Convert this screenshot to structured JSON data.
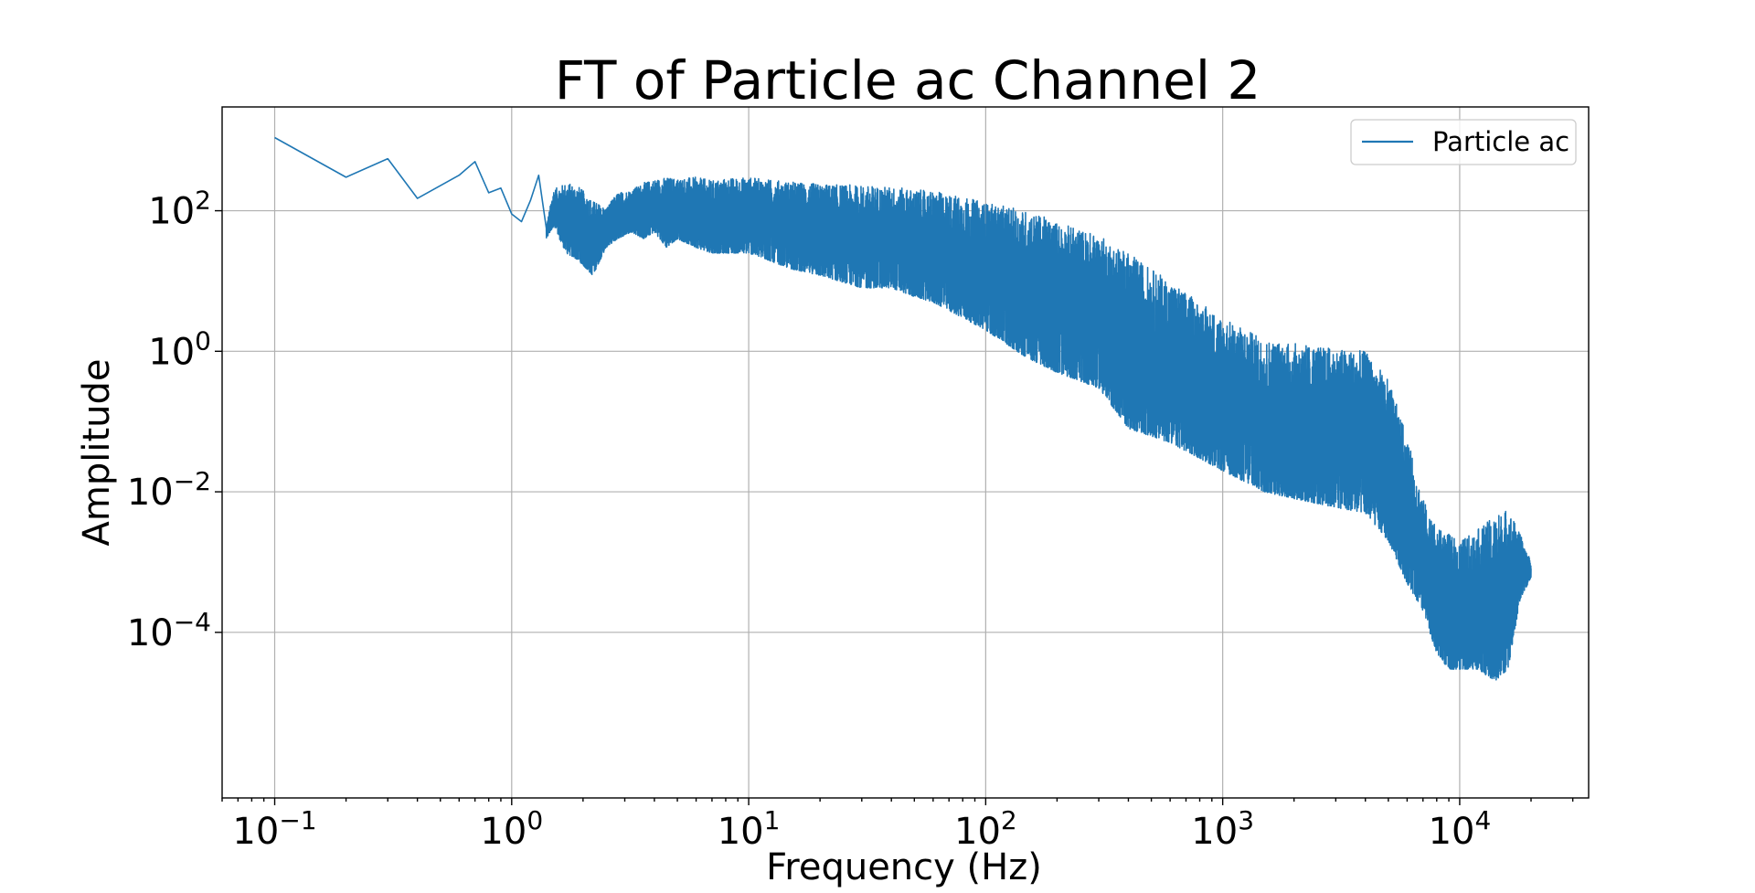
{
  "chart_data": {
    "type": "line",
    "title": "FT of Particle ac Channel 2",
    "xlabel": "Frequency (Hz)",
    "ylabel": "Amplitude",
    "xscale": "log",
    "yscale": "log",
    "xlim": [
      0.06,
      35000
    ],
    "ylim": [
      4.4e-07,
      3000
    ],
    "grid": true,
    "legend_position": "top-right",
    "x_ticks": [
      {
        "base": "10",
        "exp": "−1",
        "value": 0.1
      },
      {
        "base": "10",
        "exp": "0",
        "value": 1
      },
      {
        "base": "10",
        "exp": "1",
        "value": 10
      },
      {
        "base": "10",
        "exp": "2",
        "value": 100
      },
      {
        "base": "10",
        "exp": "3",
        "value": 1000
      },
      {
        "base": "10",
        "exp": "4",
        "value": 10000
      }
    ],
    "y_ticks": [
      {
        "base": "10",
        "exp": "2",
        "value": 100
      },
      {
        "base": "10",
        "exp": "0",
        "value": 1
      },
      {
        "base": "10",
        "exp": "−2",
        "value": 0.01
      },
      {
        "base": "10",
        "exp": "−4",
        "value": 0.0001
      }
    ],
    "series": [
      {
        "name": "Particle ac",
        "color": "#1f77b4",
        "x": [
          0.1,
          0.2,
          0.3,
          0.4,
          0.6,
          0.7,
          0.8,
          0.9,
          1.0,
          1.1,
          1.2,
          1.3,
          1.4,
          1.5,
          1.7,
          1.9,
          2.2,
          2.5,
          2.8,
          3.2,
          3.6,
          4.0,
          4.5,
          5.0,
          6.0,
          7.0,
          8.0,
          10,
          12,
          15,
          20,
          30,
          40,
          50,
          60,
          80,
          100,
          150,
          200,
          300,
          400,
          600,
          800,
          1000,
          1500,
          2000,
          3000,
          4000,
          5000,
          6000,
          7000,
          8000,
          9000,
          10000,
          12000,
          14000,
          16000,
          18000,
          20000
        ],
        "upper": [
          1100,
          300,
          550,
          150,
          320,
          500,
          180,
          210,
          90,
          70,
          140,
          320,
          60,
          200,
          250,
          230,
          140,
          110,
          180,
          200,
          250,
          280,
          300,
          290,
          300,
          270,
          290,
          300,
          280,
          260,
          240,
          230,
          220,
          200,
          190,
          160,
          130,
          100,
          70,
          45,
          25,
          10,
          5,
          3,
          1.5,
          1.3,
          1.1,
          1.0,
          0.4,
          0.06,
          0.008,
          0.003,
          0.0025,
          0.002,
          0.003,
          0.0045,
          0.006,
          0.0025,
          0.001
        ],
        "lower": [
          1100,
          300,
          550,
          150,
          320,
          500,
          180,
          210,
          90,
          70,
          140,
          320,
          40,
          60,
          25,
          20,
          12,
          30,
          40,
          50,
          40,
          50,
          30,
          40,
          30,
          25,
          25,
          25,
          20,
          15,
          12,
          8,
          8,
          6,
          5,
          3,
          2,
          0.8,
          0.5,
          0.3,
          0.08,
          0.05,
          0.03,
          0.02,
          0.01,
          0.008,
          0.006,
          0.005,
          0.002,
          0.0005,
          0.0002,
          5e-05,
          3e-05,
          3e-05,
          3e-05,
          2e-05,
          3e-05,
          0.0003,
          0.0006
        ]
      }
    ]
  }
}
